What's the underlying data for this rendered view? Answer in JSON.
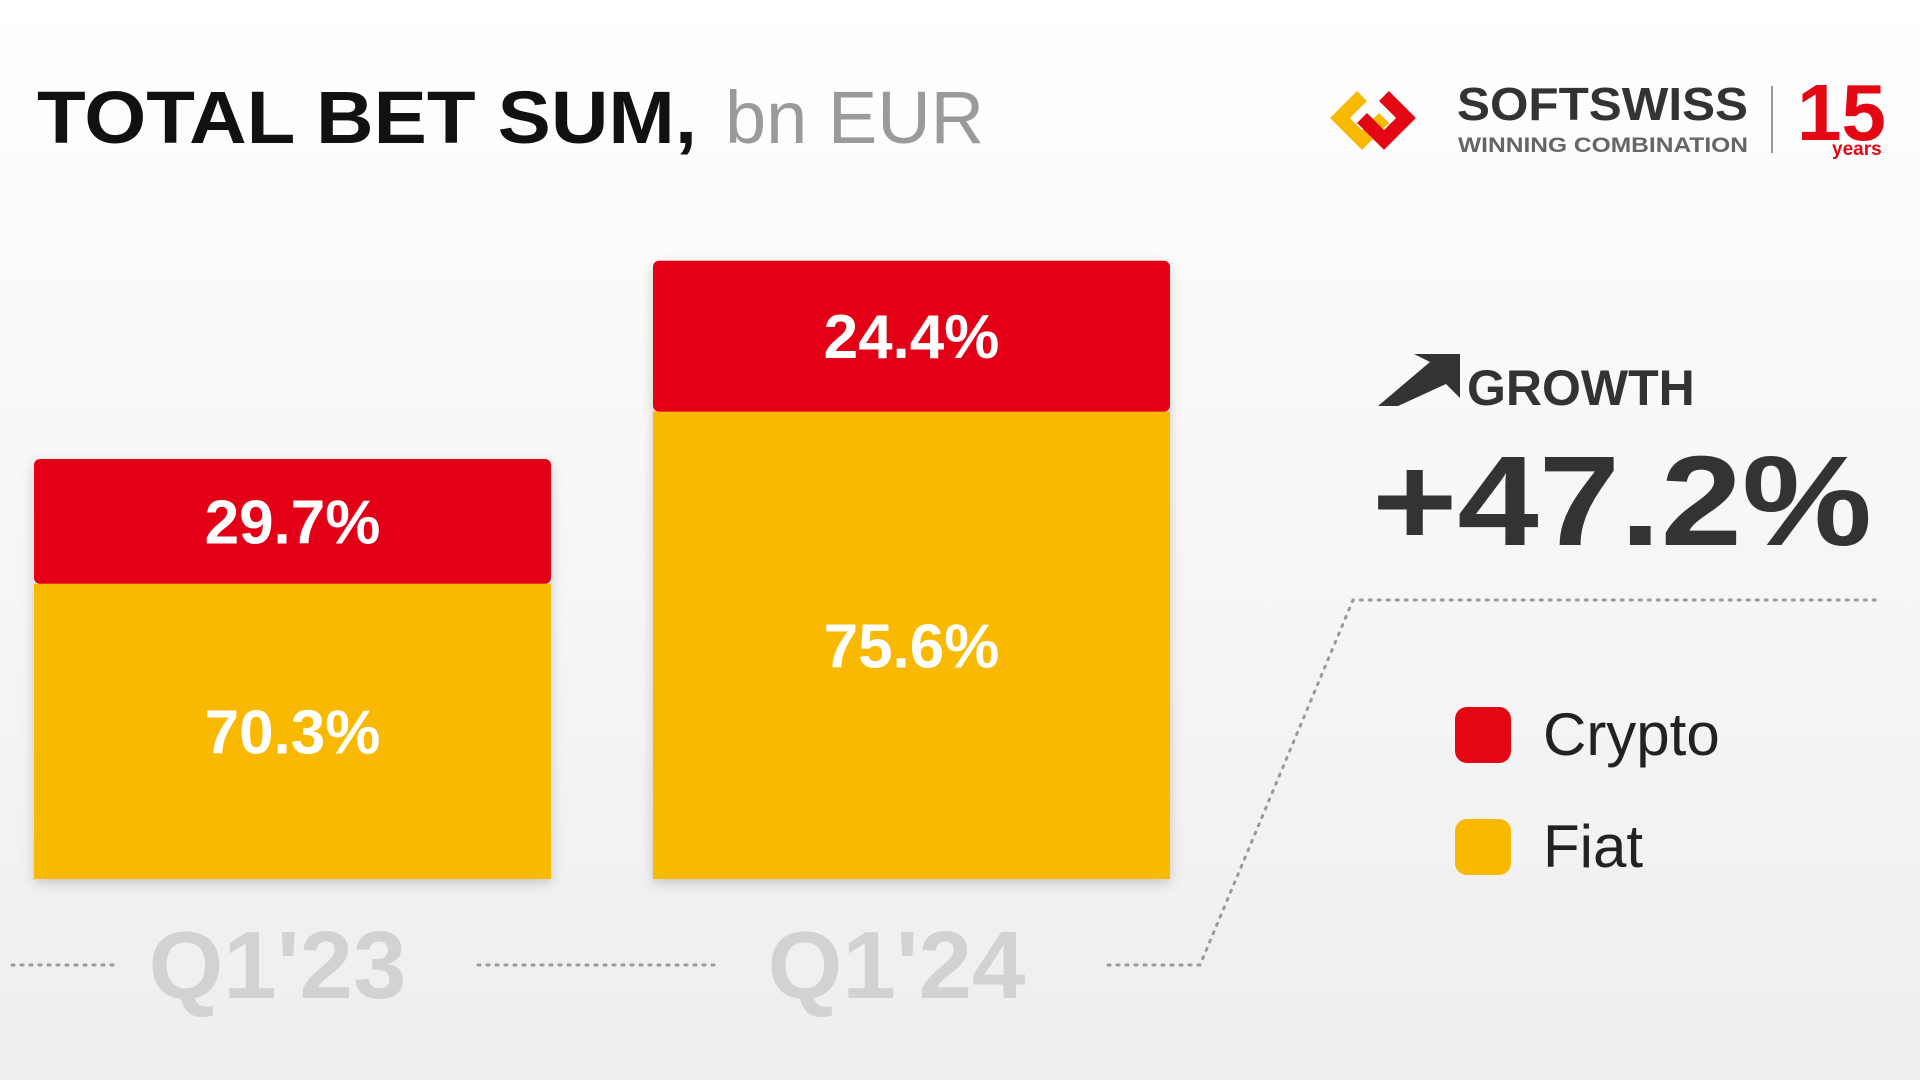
{
  "chart_data": {
    "type": "bar",
    "stacked": true,
    "title": "TOTAL BET SUM,",
    "subtitle": "bn EUR",
    "categories": [
      "Q1'23",
      "Q1'24"
    ],
    "series": [
      {
        "name": "Crypto",
        "color": "#e30613",
        "values": [
          29.7,
          24.4
        ],
        "value_labels": [
          "29.7%",
          "24.4%"
        ]
      },
      {
        "name": "Fiat",
        "color": "#f9b900",
        "values": [
          70.3,
          75.6
        ],
        "value_labels": [
          "70.3%",
          "75.6%"
        ]
      }
    ],
    "growth": {
      "label": "GROWTH",
      "value": 47.2,
      "value_label": "+47.2%"
    }
  },
  "logo": {
    "brand": "SOFTSWISS",
    "tagline": "WINNING COMBINATION",
    "anniversary": "15",
    "anniversary_unit": "years"
  }
}
